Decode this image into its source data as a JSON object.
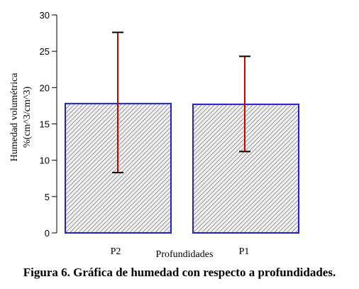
{
  "chart_data": {
    "type": "bar",
    "categories": [
      "P2",
      "P1"
    ],
    "values": [
      17.8,
      17.7
    ],
    "error_low": [
      8.3,
      11.2
    ],
    "error_high": [
      27.6,
      24.3
    ],
    "xlabel": "Profundidades",
    "ylabel_line1": "Humedad volumétrica",
    "ylabel_line2": "%(cm^3/cm^3)",
    "ylim": [
      0,
      30
    ],
    "yticks": [
      0,
      5,
      10,
      15,
      20,
      25,
      30
    ],
    "grid": false,
    "colors": {
      "bar_edge": "#1f22c8",
      "bar_hatch": "#9a9a9a",
      "error_bar": "#cc0000",
      "error_cap": "#000000",
      "axis": "#000000"
    }
  },
  "caption": "Figura 6. Gráfica de humedad con respecto a profundidades."
}
